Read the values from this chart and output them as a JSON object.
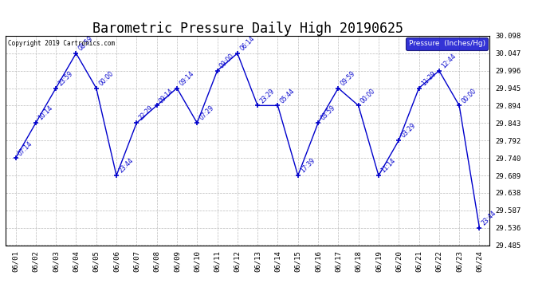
{
  "title": "Barometric Pressure Daily High 20190625",
  "copyright": "Copyright 2019 Cartronics.com",
  "legend_label": "Pressure  (Inches/Hg)",
  "x_labels": [
    "06/01",
    "06/02",
    "06/03",
    "06/04",
    "06/05",
    "06/06",
    "06/07",
    "06/08",
    "06/09",
    "06/10",
    "06/11",
    "06/12",
    "06/13",
    "06/14",
    "06/15",
    "06/16",
    "06/17",
    "06/18",
    "06/19",
    "06/20",
    "06/21",
    "06/22",
    "06/23",
    "06/24"
  ],
  "y_values": [
    29.74,
    29.843,
    29.945,
    30.047,
    29.945,
    29.689,
    29.843,
    29.894,
    29.945,
    29.843,
    29.996,
    30.047,
    29.894,
    29.894,
    29.689,
    29.843,
    29.945,
    29.894,
    29.689,
    29.792,
    29.945,
    29.996,
    29.894,
    29.536
  ],
  "point_labels": [
    "07:14",
    "10:14",
    "23:59",
    "08:59",
    "00:00",
    "23:44",
    "22:29",
    "09:14",
    "09:14",
    "07:29",
    "09:00",
    "06:14",
    "23:29",
    "05:44",
    "17:39",
    "03:59",
    "09:59",
    "00:00",
    "11:14",
    "03:29",
    "11:29",
    "12:44",
    "00:00",
    "23:44"
  ],
  "ylim_min": 29.485,
  "ylim_max": 30.098,
  "yticks": [
    29.485,
    29.536,
    29.587,
    29.638,
    29.689,
    29.74,
    29.792,
    29.843,
    29.894,
    29.945,
    29.996,
    30.047,
    30.098
  ],
  "line_color": "#0000cc",
  "marker_color": "#0000cc",
  "bg_color": "#ffffff",
  "grid_color": "#bbbbbb",
  "legend_bg": "#0000cc",
  "legend_fg": "#ffffff",
  "title_fontsize": 12,
  "tick_fontsize": 6.5,
  "point_label_fontsize": 5.5
}
